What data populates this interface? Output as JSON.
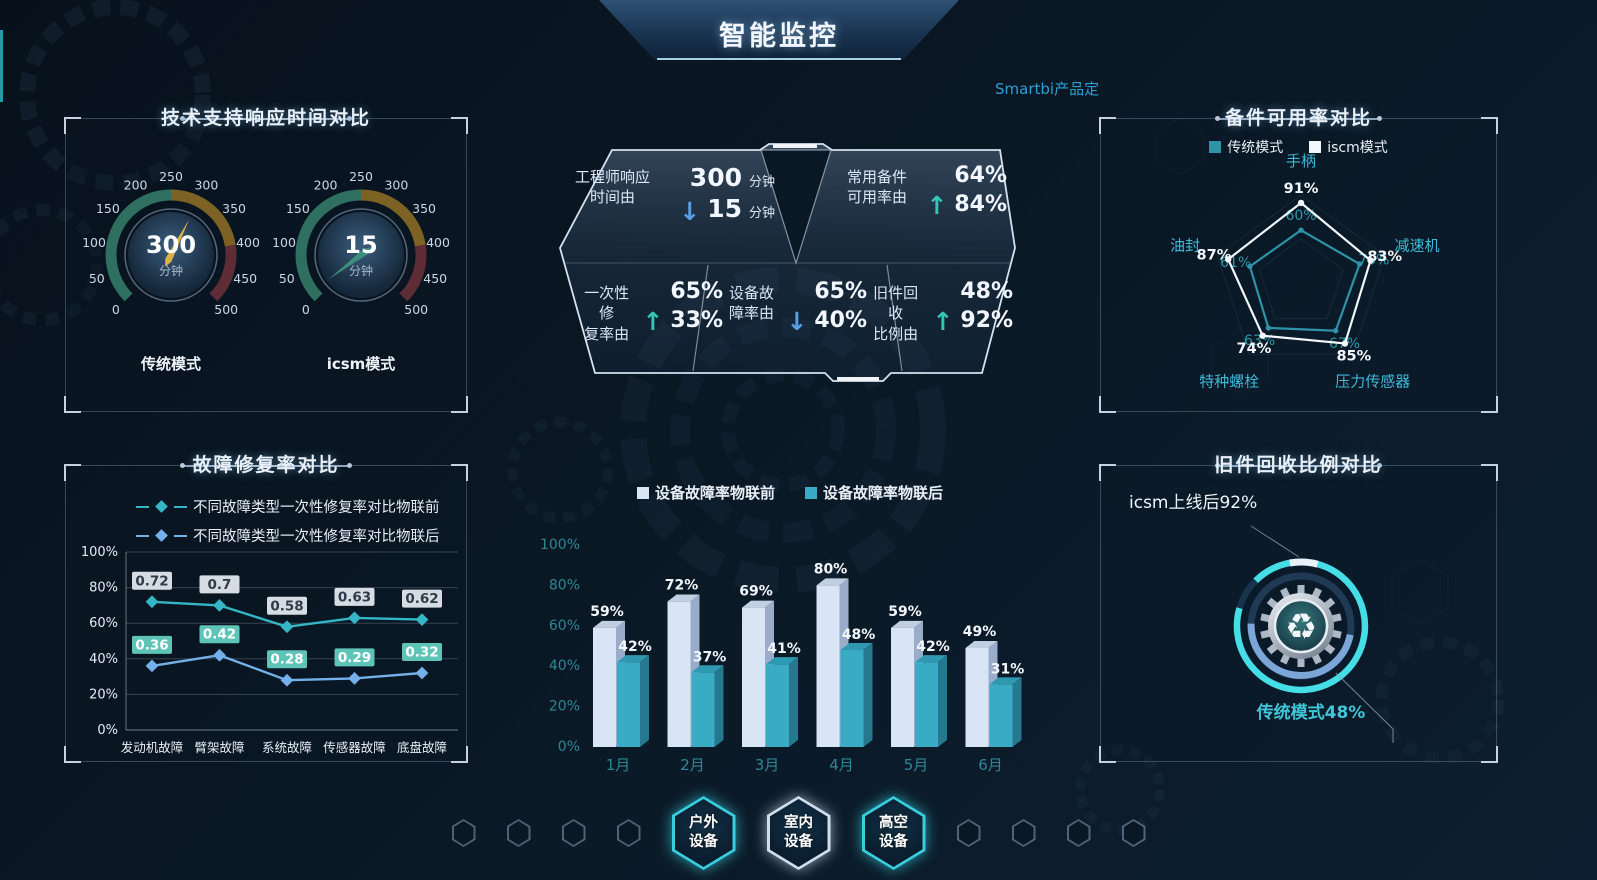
{
  "header": {
    "title": "智能监控",
    "watermark": "Smartbi产品定"
  },
  "panels": {
    "gauges_title": "技术支持响应时间对比",
    "radar_title": "备件可用率对比",
    "line_title": "故障修复率对比",
    "ring_title": "旧件回收比例对比"
  },
  "kpi_panel": {
    "cells": [
      {
        "label_line1": "工程师响应",
        "label_line2": "时间由",
        "value_from": "300",
        "unit_from": "分钟",
        "trend": "down",
        "trend_icon": "↓",
        "trend_color": "#5b9fe3",
        "value_to": "15",
        "unit_to": "分钟"
      },
      {
        "label_line1": "常用备件",
        "label_line2": "可用率由",
        "value_from": "64%",
        "trend": "up",
        "trend_icon": "↑",
        "trend_color": "#35c5b5",
        "value_to": "84%"
      },
      {
        "label_line1": "一次性修",
        "label_line2": "复率由",
        "value_from": "65%",
        "trend": "up",
        "trend_icon": "↑",
        "trend_color": "#35c5b5",
        "value_to": "33%"
      },
      {
        "label_line1": "设备故",
        "label_line2": "障率由",
        "value_from": "65%",
        "trend": "down",
        "trend_icon": "↓",
        "trend_color": "#5b9fe3",
        "value_to": "40%"
      },
      {
        "label_line1": "旧件回收",
        "label_line2": "比例由",
        "value_from": "48%",
        "trend": "up",
        "trend_icon": "↑",
        "trend_color": "#35c5b5",
        "value_to": "92%"
      }
    ]
  },
  "footer": {
    "buttons": [
      {
        "line1": "户外",
        "line2": "设备",
        "style": "cyan"
      },
      {
        "line1": "室内",
        "line2": "设备",
        "style": "light"
      },
      {
        "line1": "高空",
        "line2": "设备",
        "style": "cyan"
      }
    ]
  },
  "chart_data": [
    {
      "id": "gauge_traditional",
      "type": "gauge",
      "panel_title": "技术支持响应时间对比",
      "label": "传统模式",
      "value": 300,
      "unit": "分钟",
      "min": 0,
      "max": 500,
      "ticks": [
        0,
        50,
        100,
        150,
        200,
        250,
        300,
        350,
        400,
        450,
        500
      ],
      "zones": [
        {
          "from": 0,
          "to": 250,
          "color": "#2e6f60"
        },
        {
          "from": 250,
          "to": 400,
          "color": "#7c6324"
        },
        {
          "from": 400,
          "to": 500,
          "color": "#5d2c35"
        }
      ],
      "needle_color": "#d9b04a"
    },
    {
      "id": "gauge_icsm",
      "type": "gauge",
      "panel_title": "技术支持响应时间对比",
      "label": "icsm模式",
      "value": 15,
      "unit": "分钟",
      "min": 0,
      "max": 500,
      "ticks": [
        0,
        50,
        100,
        150,
        200,
        250,
        300,
        350,
        400,
        450,
        500
      ],
      "zones": [
        {
          "from": 0,
          "to": 250,
          "color": "#2e6f60"
        },
        {
          "from": 250,
          "to": 400,
          "color": "#7c6324"
        },
        {
          "from": 400,
          "to": 500,
          "color": "#5d2c35"
        }
      ],
      "needle_color": "#3d8f7d"
    },
    {
      "id": "radar_spares",
      "type": "radar",
      "title": "备件可用率对比",
      "max": 100,
      "axes": [
        "手柄",
        "减速机",
        "压力传感器",
        "特种螺栓",
        "油封"
      ],
      "series": [
        {
          "name": "传统模式",
          "color": "#2e93a6",
          "values": [
            60,
            70,
            67,
            63,
            61
          ]
        },
        {
          "name": "iscm模式",
          "color": "#f2f7fb",
          "values": [
            91,
            83,
            85,
            74,
            87
          ]
        }
      ],
      "legend_position": "top"
    },
    {
      "id": "line_repair",
      "type": "line",
      "title": "故障修复率对比",
      "categories": [
        "发动机故障",
        "臂架故障",
        "系统故障",
        "传感器故障",
        "底盘故障"
      ],
      "ylim": [
        0,
        1
      ],
      "ytick_labels": [
        "0%",
        "20%",
        "40%",
        "60%",
        "80%",
        "100%"
      ],
      "grid": true,
      "series": [
        {
          "name": "不同故障类型一次性修复率对比物联前",
          "color": "#35b6c6",
          "label_bg": "#d6dce3",
          "label_fg": "#2e3b49",
          "values": [
            0.72,
            0.7,
            0.58,
            0.63,
            0.62
          ]
        },
        {
          "name": "不同故障类型一次性修复率对比物联后",
          "color": "#74b0ea",
          "label_bg": "#5fc4b8",
          "label_fg": "#ffffff",
          "values": [
            0.36,
            0.42,
            0.28,
            0.29,
            0.32
          ]
        }
      ]
    },
    {
      "id": "bar_fault",
      "type": "bar",
      "categories": [
        "1月",
        "2月",
        "3月",
        "4月",
        "5月",
        "6月"
      ],
      "ylim": [
        0,
        100
      ],
      "ytick_labels": [
        "0%",
        "20%",
        "40%",
        "60%",
        "80%",
        "100%"
      ],
      "series": [
        {
          "name": "设备故障率物联前",
          "color": "#d9e4f5",
          "top_color": "#c2cfe3",
          "side_color": "#9baccb",
          "values": [
            59,
            72,
            69,
            80,
            59,
            49
          ]
        },
        {
          "name": "设备故障率物联后",
          "color": "#3aabc4",
          "top_color": "#2e99b0",
          "side_color": "#25788e",
          "values": [
            42,
            37,
            41,
            48,
            42,
            31
          ]
        }
      ]
    },
    {
      "id": "ring_recycle",
      "type": "ring",
      "title": "旧件回收比例对比",
      "annotation_top": "icsm上线后92%",
      "annotation_bottom": "传统模式48%",
      "values": [
        {
          "name": "icsm上线后",
          "value": 92,
          "color": "#45dde6"
        },
        {
          "name": "传统模式",
          "value": 48,
          "color": "#7ca6d8"
        }
      ]
    }
  ]
}
